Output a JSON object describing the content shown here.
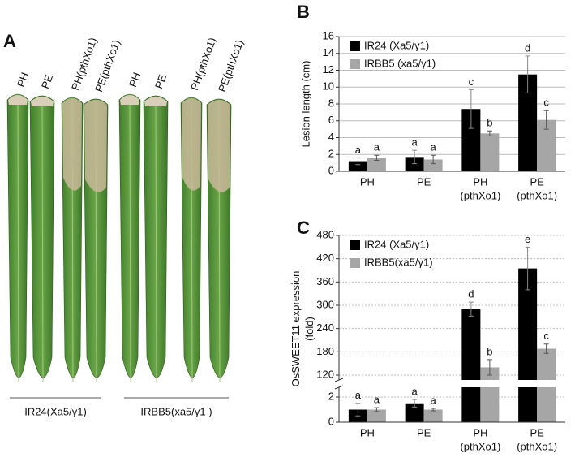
{
  "panel_a": {
    "panel_label": "A",
    "leaf_labels": [
      "PH",
      "PE",
      "PH(pthXo1)",
      "PE(pthXo1)",
      "PH",
      "PE",
      "PH(pthXo1)",
      "PE(pthXo1)"
    ],
    "groups": [
      "IR24(Xa5/γ1)",
      "IRBB5(xa5/γ1 )"
    ]
  },
  "chart_data": [
    {
      "type": "bar",
      "panel_label": "B",
      "ylabel": [
        "Lesion length (cm)"
      ],
      "categories": [
        [
          "PH"
        ],
        [
          "PE"
        ],
        [
          "PH",
          "(pthXo1)"
        ],
        [
          "PE",
          "(pthXo1)"
        ]
      ],
      "series": [
        {
          "name": "IR24 (Xa5/γ1)",
          "color": "#000000",
          "values": [
            1.2,
            1.7,
            7.4,
            11.5
          ],
          "errors": [
            0.4,
            0.8,
            2.3,
            2.2
          ],
          "letters": [
            "a",
            "a",
            "c",
            "d"
          ]
        },
        {
          "name": "IRBB5 (xa5/γ1)",
          "color": "#a6a6a6",
          "values": [
            1.6,
            1.4,
            4.5,
            6.1
          ],
          "errors": [
            0.3,
            0.5,
            0.3,
            1.1
          ],
          "letters": [
            "a",
            "a",
            "b",
            "c"
          ]
        }
      ],
      "ylim": [
        0,
        16
      ],
      "yticks": [
        0,
        2,
        4,
        6,
        8,
        10,
        12,
        14,
        16
      ],
      "grid": true,
      "legend": "upper-left"
    },
    {
      "type": "bar",
      "panel_label": "C",
      "ylabel": [
        "OsSWEET11 expression",
        "(fold)"
      ],
      "categories": [
        [
          "PH"
        ],
        [
          "PE"
        ],
        [
          "PH",
          "(pthXo1)"
        ],
        [
          "PE",
          "(pthXo1)"
        ]
      ],
      "series": [
        {
          "name": "IR24 (Xa5/γ1)",
          "color": "#000000",
          "values": [
            1.0,
            1.5,
            290,
            395
          ],
          "errors": [
            0.5,
            0.3,
            18,
            55
          ],
          "letters": [
            "a",
            "a",
            "d",
            "e"
          ]
        },
        {
          "name": "IRBB5(xa5/γ1)",
          "color": "#a6a6a6",
          "values": [
            1.0,
            1.0,
            140,
            188
          ],
          "errors": [
            0.15,
            0.1,
            20,
            12
          ],
          "letters": [
            "a",
            "a",
            "b",
            "c"
          ]
        }
      ],
      "ylim": [
        0,
        480
      ],
      "axis_break": [
        2,
        120
      ],
      "yticks": [
        0,
        2,
        120,
        180,
        240,
        300,
        360,
        420,
        480
      ],
      "grid": true,
      "legend": "upper-left"
    }
  ]
}
